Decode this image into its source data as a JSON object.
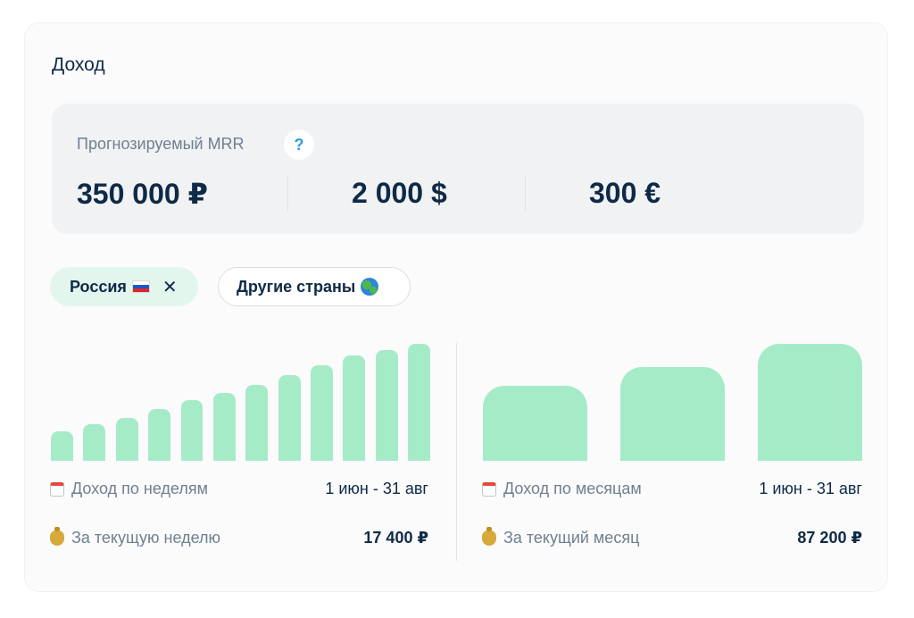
{
  "card": {
    "title": "Доход"
  },
  "mrr": {
    "label": "Прогнозируемый MRR",
    "help": "?",
    "values": [
      "350 000 ₽",
      "2 000 $",
      "300 €"
    ]
  },
  "filters": {
    "active": {
      "label": "Россия",
      "flag": "russia-flag",
      "close": "✕"
    },
    "other": {
      "label": "Другие страны",
      "icon": "globe-icon"
    }
  },
  "weekly": {
    "label": "Доход по неделям",
    "range": "1 июн - 31 авг",
    "current_label": "За текущую неделю",
    "current_value": "17 400 ₽",
    "bar_values": [
      0.25,
      0.31,
      0.37,
      0.44,
      0.52,
      0.58,
      0.65,
      0.73,
      0.82,
      0.9,
      0.95,
      1.0
    ]
  },
  "monthly": {
    "label": "Доход по месяцам",
    "range": "1 июн - 31 авг",
    "current_label": "За текущий месяц",
    "current_value": "87 200 ₽",
    "bar_values": [
      0.64,
      0.8,
      1.0
    ]
  },
  "colors": {
    "bar": "#a6ebc8",
    "text": "#0e2a47",
    "muted": "#6f7f90",
    "accent": "#2d9bd8"
  }
}
